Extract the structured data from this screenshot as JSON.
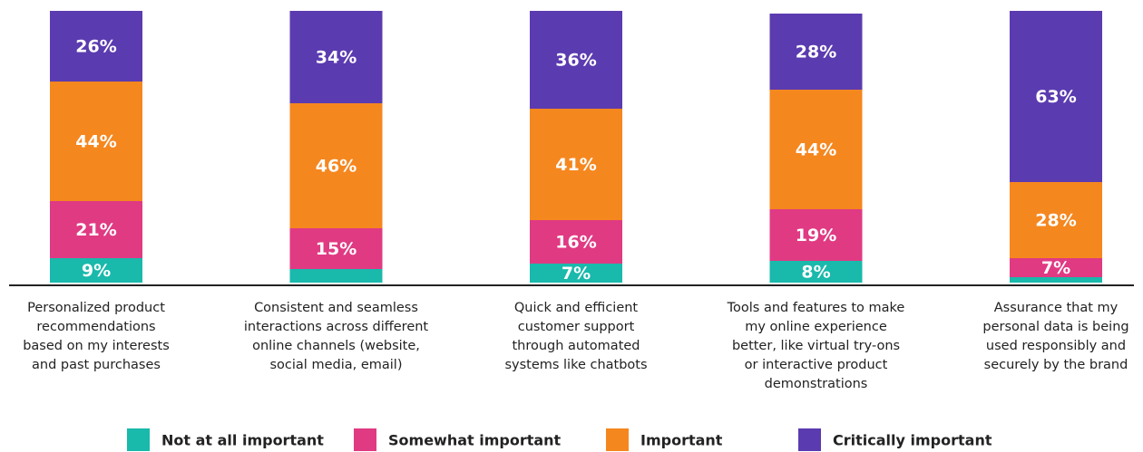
{
  "chart_data": {
    "type": "stacked_bar",
    "categories": [
      [
        "Personalized product",
        "recommendations",
        "based on my interests",
        "and past purchases"
      ],
      [
        "Consistent and seamless",
        "interactions across different",
        "online channels (website,",
        "social media, email)"
      ],
      [
        "Quick and efficient",
        "customer support",
        "through automated",
        "systems like chatbots"
      ],
      [
        "Tools and features to make",
        "my online experience",
        "better, like virtual try-ons",
        "or interactive product",
        "demonstrations"
      ],
      [
        "Assurance that my",
        "personal data is being",
        "used responsibly and",
        "securely by the brand"
      ]
    ],
    "series": [
      {
        "name": "Not at all important",
        "color": "#19b9ab",
        "values": [
          9,
          5,
          7,
          8,
          2
        ],
        "value_labels": [
          "9%",
          null,
          "7%",
          "8%",
          null
        ]
      },
      {
        "name": "Somewhat important",
        "color": "#e03a83",
        "values": [
          21,
          15,
          16,
          19,
          7
        ],
        "value_labels": [
          "21%",
          "15%",
          "16%",
          "19%",
          "7%"
        ]
      },
      {
        "name": "Important",
        "color": "#f5871f",
        "values": [
          44,
          46,
          41,
          44,
          28
        ],
        "value_labels": [
          "44%",
          "46%",
          "41%",
          "44%",
          "28%"
        ]
      },
      {
        "name": "Critically important",
        "color": "#5b3bb0",
        "values": [
          26,
          34,
          36,
          28,
          63
        ],
        "value_labels": [
          "26%",
          "34%",
          "36%",
          "28%",
          "63%"
        ]
      }
    ],
    "ylim": [
      0,
      100
    ]
  }
}
